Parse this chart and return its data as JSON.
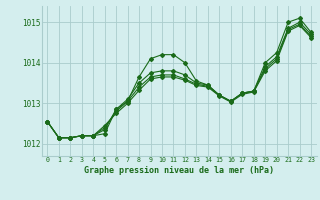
{
  "title": "Graphe pression niveau de la mer (hPa)",
  "bg_color": "#d4eeee",
  "grid_color": "#aacccc",
  "line_color": "#1a6b1a",
  "xlim": [
    -0.5,
    23.5
  ],
  "ylim": [
    1011.7,
    1015.4
  ],
  "yticks": [
    1012,
    1013,
    1014,
    1015
  ],
  "xticks": [
    0,
    1,
    2,
    3,
    4,
    5,
    6,
    7,
    8,
    9,
    10,
    11,
    12,
    13,
    14,
    15,
    16,
    17,
    18,
    19,
    20,
    21,
    22,
    23
  ],
  "series": [
    [
      1012.55,
      1012.15,
      1012.15,
      1012.2,
      1012.2,
      1012.25,
      1012.85,
      1013.05,
      1013.65,
      1014.1,
      1014.2,
      1014.2,
      1014.0,
      1013.55,
      1013.45,
      1013.2,
      1013.05,
      1013.25,
      1013.3,
      1014.0,
      1014.25,
      1015.0,
      1015.1,
      1014.75
    ],
    [
      1012.55,
      1012.15,
      1012.15,
      1012.2,
      1012.2,
      1012.35,
      1012.85,
      1013.1,
      1013.5,
      1013.75,
      1013.8,
      1013.8,
      1013.7,
      1013.5,
      1013.45,
      1013.2,
      1013.05,
      1013.25,
      1013.3,
      1013.9,
      1014.15,
      1014.85,
      1015.0,
      1014.7
    ],
    [
      1012.55,
      1012.15,
      1012.15,
      1012.2,
      1012.2,
      1012.4,
      1012.8,
      1013.05,
      1013.4,
      1013.65,
      1013.7,
      1013.7,
      1013.6,
      1013.47,
      1013.42,
      1013.2,
      1013.05,
      1013.25,
      1013.3,
      1013.85,
      1014.1,
      1014.82,
      1014.95,
      1014.65
    ],
    [
      1012.55,
      1012.15,
      1012.15,
      1012.2,
      1012.2,
      1012.45,
      1012.75,
      1013.0,
      1013.32,
      1013.6,
      1013.65,
      1013.65,
      1013.57,
      1013.44,
      1013.4,
      1013.18,
      1013.03,
      1013.22,
      1013.28,
      1013.8,
      1014.05,
      1014.78,
      1014.92,
      1014.62
    ]
  ],
  "marker": "D",
  "markersize": 2.0,
  "linewidth": 0.8
}
